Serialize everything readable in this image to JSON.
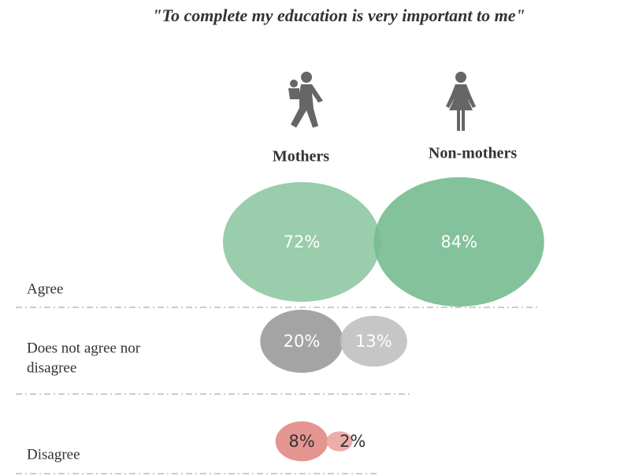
{
  "chart_data": {
    "type": "bubble",
    "title": "\"To complete my education is very important to me\"",
    "categories": [
      [
        "Agree"
      ],
      [
        "Does not agree nor",
        "disagree"
      ],
      [
        "Disagree"
      ]
    ],
    "series": [
      {
        "name": "Mothers",
        "colors": [
          "#8ec8a2",
          "#9a9a9a",
          "#e28a84"
        ],
        "values": [
          72,
          20,
          8
        ],
        "value_labels": [
          "72%",
          "20%",
          "8%"
        ]
      },
      {
        "name": "Non-mothers",
        "colors": [
          "#75bb8f",
          "#c0c0c0",
          "#eba5a0"
        ],
        "values": [
          84,
          13,
          2
        ],
        "value_labels": [
          "84%",
          "13%",
          "2%"
        ]
      }
    ]
  }
}
